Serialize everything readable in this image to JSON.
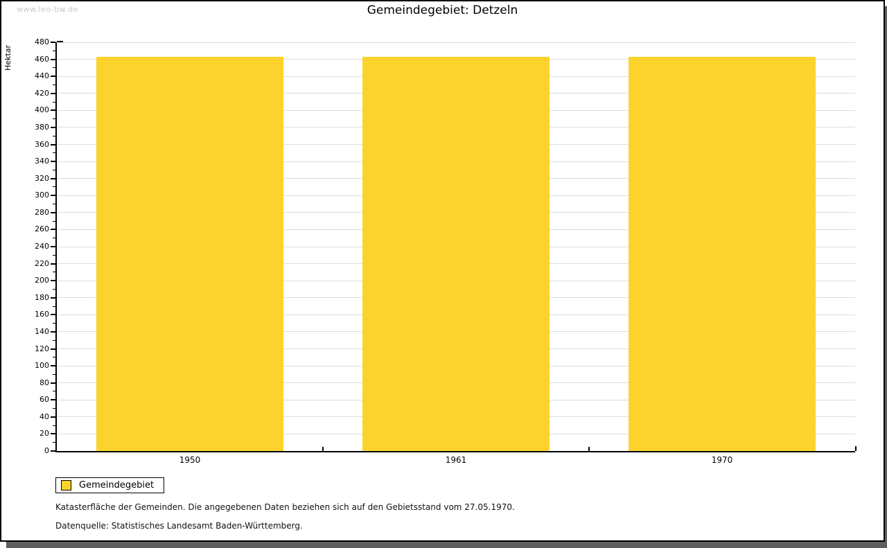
{
  "watermark": "www.leo-bw.de",
  "title": "Gemeindegebiet: Detzeln",
  "chart_data": {
    "type": "bar",
    "categories": [
      "1950",
      "1961",
      "1970"
    ],
    "series": [
      {
        "name": "Gemeindegebiet",
        "values": [
          463,
          463,
          463
        ]
      }
    ],
    "title": "Gemeindegebiet: Detzeln",
    "xlabel": "",
    "ylabel": "Hektar",
    "ylim": [
      0,
      480
    ],
    "ytick_step": 20,
    "yminor_step": 10,
    "grid": true,
    "legend_position": "bottom-left",
    "bar_color": "#FCD32D"
  },
  "colors": {
    "bar": "#FCD32D",
    "gridline": "#DCDCDC",
    "axis": "#000000",
    "watermark": "#C9C9C9",
    "frame_shadow": "#5F5F5F"
  },
  "footnotes": [
    "Katasterfläche der Gemeinden. Die angegebenen Daten beziehen sich auf den Gebietsstand vom 27.05.1970.",
    "Datenquelle: Statistisches Landesamt Baden-Württemberg."
  ]
}
